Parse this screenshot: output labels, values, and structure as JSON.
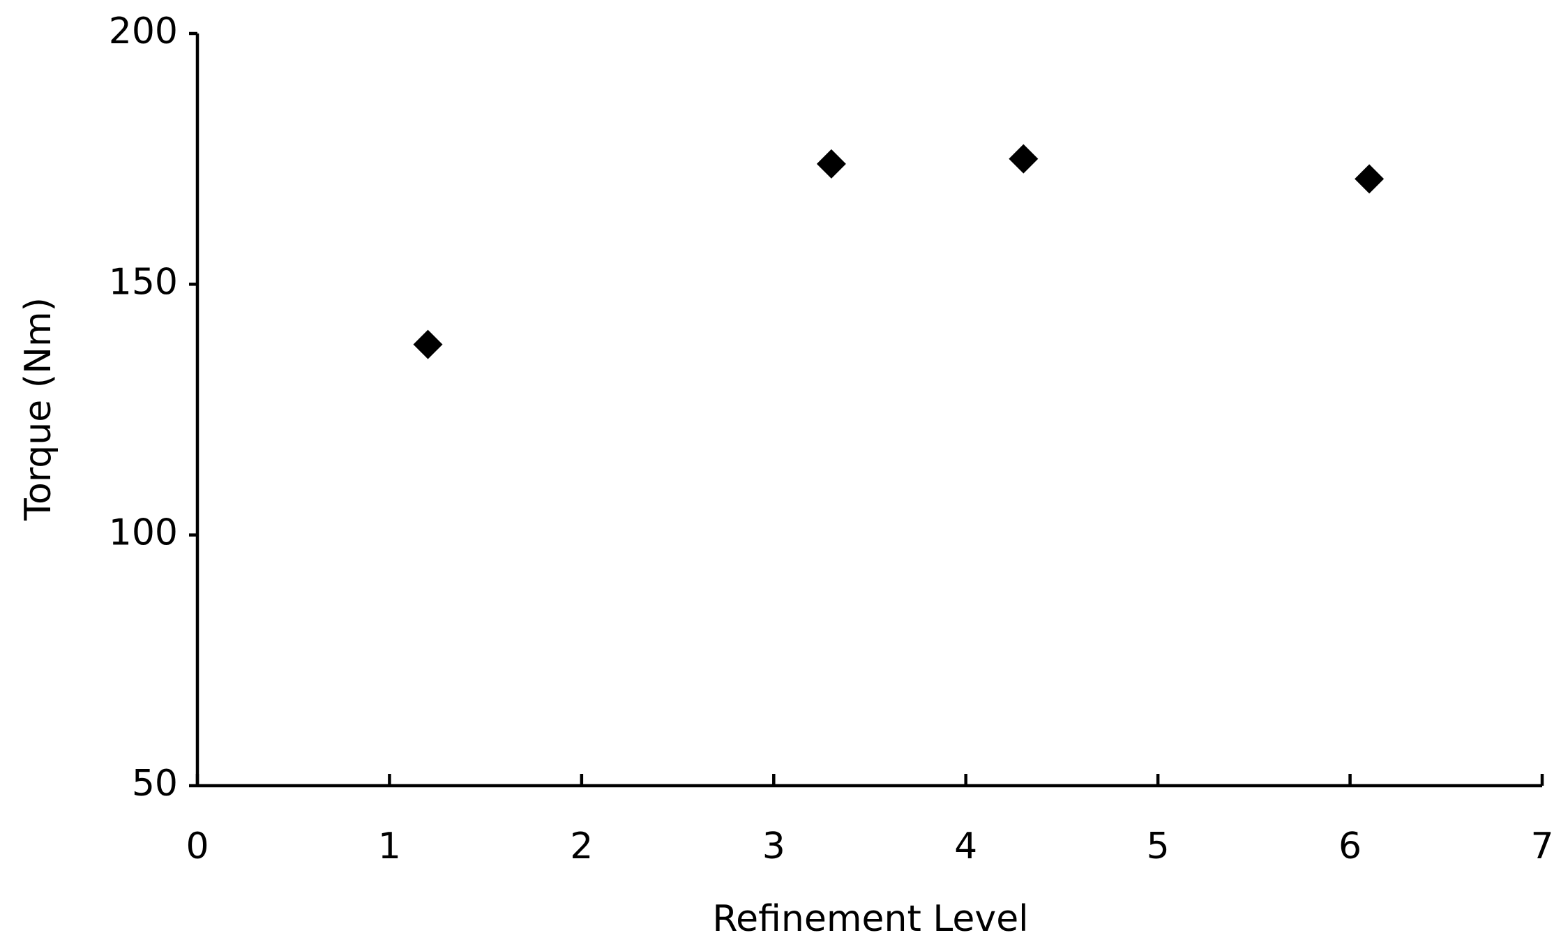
{
  "chart_data": {
    "type": "scatter",
    "x_label": "Refinement Level",
    "y_label": "Torque (Nm)",
    "series": [
      {
        "color": "#000000",
        "x": [
          1.2,
          3.3,
          4.3,
          6.1
        ],
        "values": [
          138,
          174,
          175,
          171
        ]
      }
    ],
    "xlim": [
      0,
      7
    ],
    "xticks": [
      0,
      1,
      2,
      3,
      4,
      5,
      6,
      7
    ],
    "ylim": [
      50,
      200
    ],
    "yticks": [
      50,
      100,
      150,
      200
    ]
  }
}
